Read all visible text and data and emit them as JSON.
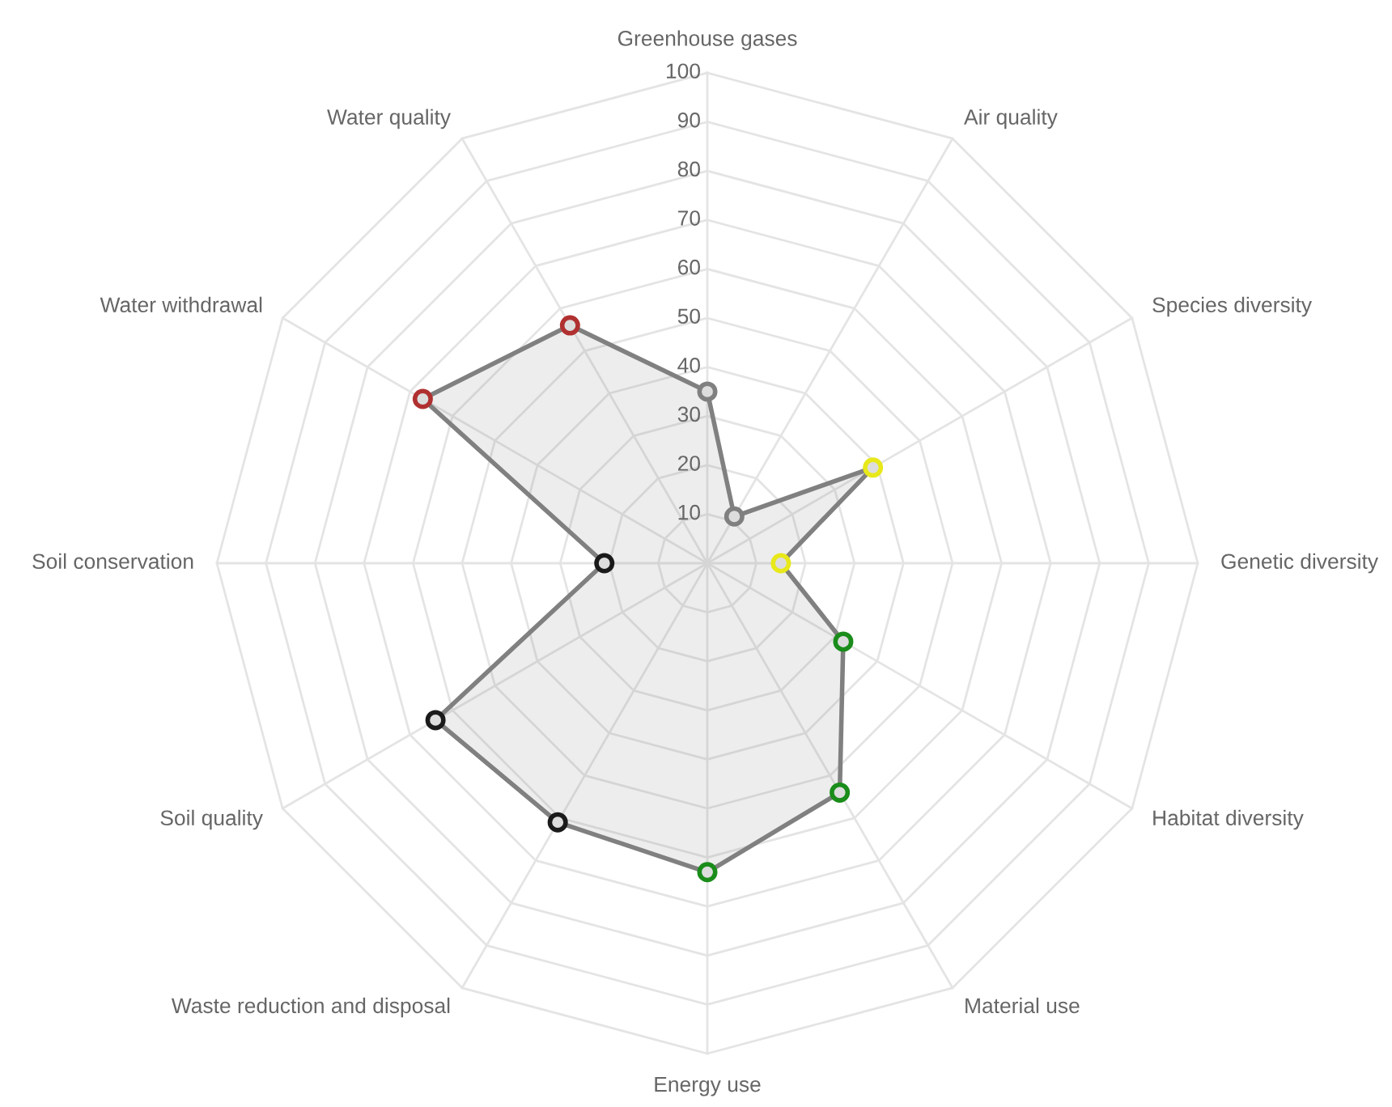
{
  "chart_data": {
    "type": "radar",
    "categories": [
      "Greenhouse gases",
      "Air quality",
      "Species diversity",
      "Genetic diversity",
      "Habitat diversity",
      "Material use",
      "Energy use",
      "Waste reduction and disposal",
      "Soil quality",
      "Soil conservation",
      "Water withdrawal",
      "Water quality"
    ],
    "series": [
      {
        "color": "#808080",
        "colors": [
          "#808080",
          "#808080",
          "#e8e81a",
          "#e8e81a",
          "#1a8c1a",
          "#1a8c1a",
          "#1a8c1a",
          "#1a1a1a",
          "#1a1a1a",
          "#1a1a1a",
          "#b03030",
          "#b03030"
        ],
        "values": [
          35,
          11,
          39,
          15,
          32,
          54,
          63,
          61,
          64,
          21,
          67,
          56
        ]
      }
    ],
    "ylim": [
      0,
      100
    ],
    "yticks": [
      10,
      20,
      30,
      40,
      50,
      60,
      70,
      80,
      90,
      100
    ],
    "grid": true,
    "marker": "circle",
    "line_style": "solid"
  }
}
